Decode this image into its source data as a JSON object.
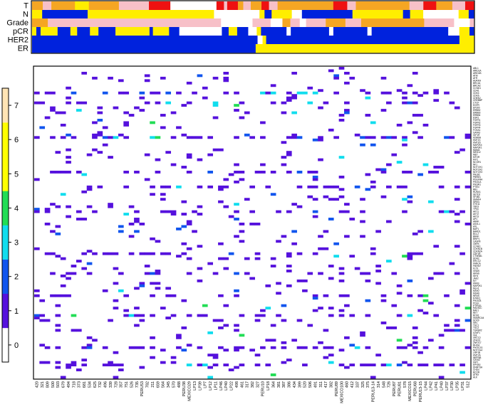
{
  "chart_data": {
    "type": "heatmap",
    "title": "",
    "annotation_tracks": {
      "labels": [
        "T",
        "N",
        "Grade",
        "pCR",
        "HER2",
        "ER"
      ],
      "palette": {
        "o": "#f5a623",
        "p": "#f7c0c8",
        "r": "#ee1111",
        "y": "#ffee00",
        "b": "#0022dd",
        "w": "#ffffff"
      },
      "rows": [
        [
          [
            "o",
            10
          ],
          [
            "p",
            8
          ],
          [
            "o",
            22
          ],
          [
            "y",
            13
          ],
          [
            "o",
            28
          ],
          [
            "p",
            28
          ],
          [
            "r",
            20
          ],
          [
            "w",
            43
          ],
          [
            "r",
            7
          ],
          [
            "p",
            3
          ],
          [
            "r",
            10
          ],
          [
            "o",
            5
          ],
          [
            "p",
            7
          ],
          [
            "o",
            10
          ],
          [
            "r",
            7
          ],
          [
            "p",
            8
          ],
          [
            "o",
            52
          ],
          [
            "r",
            13
          ],
          [
            "p",
            8
          ],
          [
            "o",
            50
          ],
          [
            "p",
            13
          ],
          [
            "r",
            12
          ],
          [
            "o",
            15
          ],
          [
            "p",
            12
          ],
          [
            "r",
            8
          ]
        ],
        [
          [
            "y",
            10
          ],
          [
            "b",
            45
          ],
          [
            "y",
            25
          ],
          [
            "y",
            100
          ],
          [
            "w",
            45
          ],
          [
            "y",
            5
          ],
          [
            "b",
            7
          ],
          [
            "y",
            20
          ],
          [
            "w",
            10
          ],
          [
            "b",
            50
          ],
          [
            "y",
            12
          ],
          [
            "y",
            38
          ],
          [
            "b",
            7
          ],
          [
            "y",
            13
          ],
          [
            "w",
            35
          ],
          [
            "y",
            10
          ],
          [
            "b",
            5
          ]
        ],
        [
          [
            "o",
            20
          ],
          [
            "p",
            70
          ],
          [
            "p",
            150
          ],
          [
            "w",
            40
          ],
          [
            "p",
            23
          ],
          [
            "w",
            15
          ],
          [
            "o",
            10
          ],
          [
            "p",
            12
          ],
          [
            "w",
            8
          ],
          [
            "p",
            13
          ],
          [
            "p",
            12
          ],
          [
            "o",
            25
          ],
          [
            "p",
            20
          ],
          [
            "o",
            80
          ],
          [
            "p",
            38
          ],
          [
            "w",
            20
          ],
          [
            "p",
            5
          ]
        ],
        [
          [
            "y",
            5
          ],
          [
            "b",
            5
          ],
          [
            "y",
            20
          ],
          [
            "b",
            15
          ],
          [
            "y",
            8
          ],
          [
            "b",
            15
          ],
          [
            "y",
            10
          ],
          [
            "b",
            20
          ],
          [
            "y",
            40
          ],
          [
            "b",
            4
          ],
          [
            "y",
            19
          ],
          [
            "b",
            12
          ],
          [
            "w",
            50
          ],
          [
            "b",
            8
          ],
          [
            "y",
            10
          ],
          [
            "b",
            13
          ],
          [
            "w",
            10
          ],
          [
            "y",
            5
          ],
          [
            "b",
            30
          ],
          [
            "w",
            5
          ],
          [
            "b",
            45
          ],
          [
            "w",
            5
          ],
          [
            "b",
            40
          ],
          [
            "w",
            5
          ],
          [
            "b",
            90
          ],
          [
            "w",
            13
          ],
          [
            "y",
            12
          ],
          [
            "b",
            5
          ]
        ],
        [
          [
            "b",
            315
          ],
          [
            "w",
            7
          ],
          [
            "y",
            5
          ],
          [
            "b",
            30
          ],
          [
            "b",
            240
          ],
          [
            "y",
            20
          ]
        ],
        [
          [
            "b",
            325
          ],
          [
            "y",
            317
          ]
        ]
      ]
    },
    "matrix": {
      "x_tick_labels": [
        "420",
        "321",
        "809",
        "500",
        "503",
        "679",
        "494",
        "718",
        "373",
        "681",
        "534",
        "625",
        "732",
        "496",
        "339",
        "728",
        "357",
        "751",
        "526",
        "735",
        "PERU53",
        "782",
        "211",
        "659",
        "564",
        "345",
        "570",
        "488",
        "PERU38",
        "MEXICO29",
        "LP13",
        "LP39",
        "LP7",
        "LP12",
        "LP11",
        "LP46",
        "LP40",
        "LP22",
        "498",
        "461",
        "317",
        "382",
        "327",
        "PERU10",
        "LP18",
        "364",
        "381",
        "387",
        "386",
        "434",
        "399",
        "520",
        "506",
        "491",
        "311",
        "417",
        "382",
        "PERU89",
        "MEXICO100",
        "460",
        "412",
        "337",
        "325",
        "375",
        "PERU13-14",
        "314",
        "548",
        "726",
        "PERU87",
        "PERU81",
        "578",
        "MEXICO15",
        "PERU68",
        "PERU13-15",
        "LP44",
        "LP42",
        "LP41",
        "LP40",
        "LP37",
        "LP30",
        "LP35",
        "LP31",
        "512"
      ],
      "y_tick_labels": [
        "ABL1",
        "ARID1A",
        "ARID1B",
        "ATM",
        "ATR",
        "AURKA",
        "BRCA1",
        "BRCA2",
        "CCND1",
        "CDH1",
        "CDK4",
        "CDK6",
        "CHEK2",
        "CREBBP",
        "CTCF",
        "EGFR",
        "EP300",
        "ERBB2",
        "ERBB3",
        "ERBB4",
        "ESR1",
        "FGFR1",
        "FGFR2",
        "FGFR3",
        "FGFR4",
        "FOXA1",
        "GATA3",
        "IGF1R",
        "KDM6A",
        "KMT2C",
        "KMT2D",
        "MAP2K4",
        "MAP3K1",
        "MDM2",
        "MED12",
        "MET",
        "MTOR",
        "MYC",
        "NCOR1",
        "NF1",
        "NOTCH1",
        "NOTCH2",
        "NOTCH3",
        "PALB2",
        "PBRM1",
        "PDGFRA",
        "PIK3CA",
        "PIK3R1",
        "PTEN",
        "RB1",
        "RUNX1",
        "SETD2",
        "SF3B1",
        "SMAD4",
        "SPEN",
        "STK11",
        "TBX3",
        "TP53",
        "AKT1",
        "AKT2",
        "AKT3",
        "APC",
        "ARAF",
        "ASXL1",
        "AXL",
        "BAP1",
        "BARD1",
        "BCL2",
        "BRAF",
        "BRIP1",
        "CASP8",
        "CBFB",
        "CCNE1",
        "CDKN1B",
        "CDKN2A",
        "CSF1R",
        "CTNNB1",
        "DDR2",
        "ERCC2",
        "FANCA",
        "FBXW7",
        "FLT3",
        "GNAS",
        "HRAS",
        "IDH1",
        "JAK2",
        "KIT",
        "KRAS",
        "MAP2K1",
        "MLH1",
        "MSH2",
        "MSH6",
        "NRAS",
        "NTRK1",
        "PIK3CB",
        "POLE",
        "PTPN11",
        "RAD51C",
        "RAF1",
        "RET",
        "ROS1",
        "SMARCA4",
        "SOX9",
        "SRC",
        "TSC1",
        "TSC2",
        "TGFBR2",
        "U2AF1",
        "VHL",
        "XRCC2",
        "ZFHX3",
        "ZNF217",
        "RHOA",
        "PIK3C2G",
        "NOTCH4",
        "LRP1B",
        "KMT2A",
        "INPP4B",
        "GATA2",
        "FAT1",
        "EPHA3",
        "DNMT3A",
        "CHD4",
        "BCOR",
        "ATRX",
        "ALK"
      ]
    },
    "colorbar": {
      "tick_labels": [
        "0",
        "1",
        "2",
        "3",
        "4",
        "5",
        "6",
        "7"
      ],
      "colors": [
        "#ffffff",
        "#5511dd",
        "#1155ee",
        "#11ddee",
        "#22dd55",
        "#ffff00",
        "#ffff00",
        "#ffe4b5"
      ]
    }
  }
}
